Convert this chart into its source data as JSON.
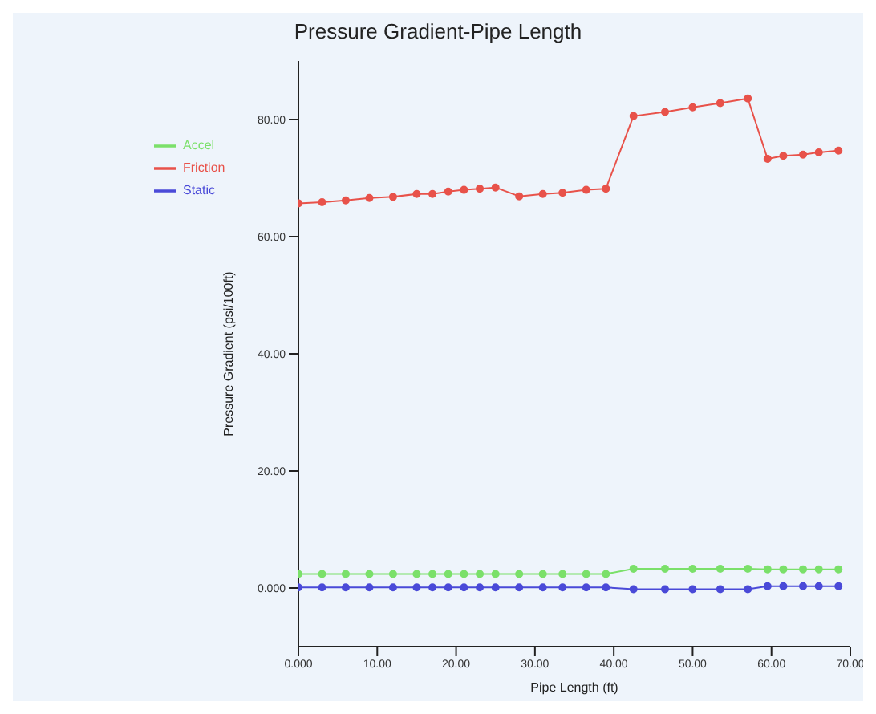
{
  "chart_data": {
    "type": "line",
    "title": "Pressure Gradient-Pipe Length",
    "xlabel": "Pipe Length (ft)",
    "ylabel": "Pressure Gradient (psi/100ft)",
    "x": [
      0,
      3,
      6,
      9,
      12,
      15,
      17,
      19,
      21,
      23,
      25,
      28,
      31,
      33.5,
      36.5,
      39,
      42.5,
      46.5,
      50,
      53.5,
      57,
      59.5,
      61.5,
      64,
      66,
      68.5
    ],
    "series": [
      {
        "name": "Friction",
        "color": "#e8524a",
        "values": [
          65.7,
          65.9,
          66.2,
          66.6,
          66.8,
          67.3,
          67.3,
          67.7,
          68.0,
          68.2,
          68.4,
          66.9,
          67.3,
          67.5,
          68.0,
          68.2,
          80.6,
          81.3,
          82.1,
          82.8,
          83.6,
          73.3,
          73.8,
          74.0,
          74.4,
          74.7
        ]
      },
      {
        "name": "Static",
        "color": "#4a4ad8",
        "values": [
          0.1,
          0.1,
          0.1,
          0.1,
          0.1,
          0.1,
          0.1,
          0.1,
          0.1,
          0.1,
          0.1,
          0.1,
          0.1,
          0.1,
          0.1,
          0.1,
          -0.2,
          -0.2,
          -0.2,
          -0.2,
          -0.2,
          0.3,
          0.3,
          0.3,
          0.3,
          0.3
        ]
      },
      {
        "name": "Accel",
        "color": "#7be06a",
        "values": [
          2.4,
          2.4,
          2.4,
          2.4,
          2.4,
          2.4,
          2.4,
          2.4,
          2.4,
          2.4,
          2.4,
          2.4,
          2.4,
          2.4,
          2.4,
          2.4,
          3.3,
          3.3,
          3.3,
          3.3,
          3.3,
          3.2,
          3.2,
          3.2,
          3.2,
          3.2
        ]
      }
    ],
    "xlim": [
      0,
      70
    ],
    "xticks": [
      {
        "value": 0,
        "label": "0.000"
      },
      {
        "value": 10,
        "label": "10.00"
      },
      {
        "value": 20,
        "label": "20.00"
      },
      {
        "value": 30,
        "label": "30.00"
      },
      {
        "value": 40,
        "label": "40.00"
      },
      {
        "value": 50,
        "label": "50.00"
      },
      {
        "value": 60,
        "label": "60.00"
      },
      {
        "value": 70,
        "label": "70.00"
      }
    ],
    "ylim": [
      -10,
      90
    ],
    "yticks": [
      {
        "value": 0,
        "label": "0.000"
      },
      {
        "value": 20,
        "label": "20.00"
      },
      {
        "value": 40,
        "label": "40.00"
      },
      {
        "value": 60,
        "label": "60.00"
      },
      {
        "value": 80,
        "label": "80.00"
      }
    ],
    "grid": false,
    "legend": "top left",
    "marker": "circle",
    "line_style": "solid"
  }
}
